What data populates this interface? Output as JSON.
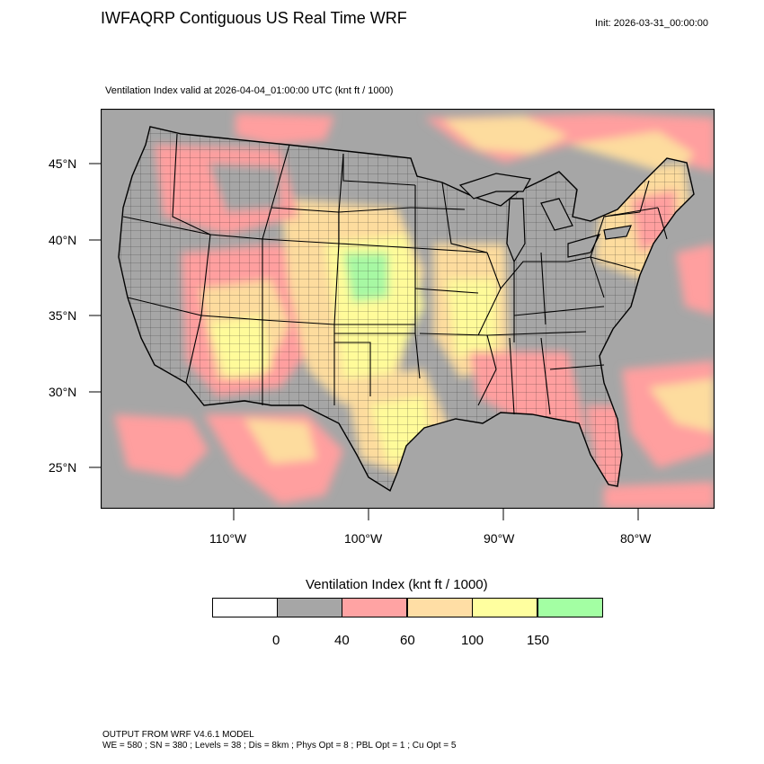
{
  "header": {
    "title": "IWFAQRP Contiguous US Real Time WRF",
    "init": "Init: 2026-03-31_00:00:00",
    "subtitle": "Ventilation Index valid at 2026-04-04_01:00:00 UTC   (knt ft / 1000)"
  },
  "map": {
    "lat_labels": [
      "45°N",
      "40°N",
      "35°N",
      "30°N",
      "25°N"
    ],
    "lon_labels": [
      "110°W",
      "100°W",
      "90°W",
      "80°W"
    ],
    "colors": {
      "background": "#a6a6a6",
      "water": "#a6a6a6",
      "low": "#ff9f9f",
      "mid": "#fddc9e",
      "high": "#fffb9a",
      "top": "#a7f8a3",
      "boundary": "#000000"
    }
  },
  "colorbar": {
    "title": "Ventilation Index  (knt ft / 1000)",
    "bins": [
      {
        "color": "#ffffff"
      },
      {
        "color": "#a6a6a6"
      },
      {
        "color": "#ffa3a3"
      },
      {
        "color": "#ffdea5"
      },
      {
        "color": "#ffff9f"
      },
      {
        "color": "#a3ffa3"
      }
    ],
    "labels": [
      "0",
      "40",
      "60",
      "100",
      "150"
    ]
  },
  "footer": {
    "line1": "OUTPUT FROM WRF V4.6.1 MODEL",
    "line2": "WE = 580 ; SN = 380 ; Levels = 38 ; Dis = 8km ; Phys Opt = 8 ; PBL Opt = 1 ; Cu Opt = 5"
  }
}
